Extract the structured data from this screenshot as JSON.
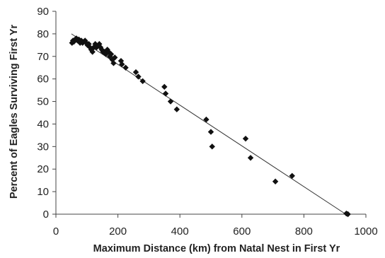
{
  "chart_data": {
    "type": "scatter",
    "title": "",
    "xlabel": "Maximum Distance (km) from Natal Nest in First Yr",
    "ylabel": "Percent of Eagles Surviving First Yr",
    "xlim": [
      0,
      1000
    ],
    "ylim": [
      0,
      90
    ],
    "xticks": [
      0,
      200,
      400,
      600,
      800,
      1000
    ],
    "yticks": [
      0,
      10,
      20,
      30,
      40,
      50,
      60,
      70,
      80,
      90
    ],
    "grid": false,
    "legend": "none",
    "marker": "diamond",
    "colors": {
      "points": "#111111",
      "trendline": "#333333",
      "axis": "#444444"
    },
    "points": [
      {
        "x": 52,
        "y": 76
      },
      {
        "x": 55,
        "y": 77
      },
      {
        "x": 58,
        "y": 76.5
      },
      {
        "x": 62,
        "y": 77.5
      },
      {
        "x": 66,
        "y": 78
      },
      {
        "x": 70,
        "y": 77
      },
      {
        "x": 74,
        "y": 77.5
      },
      {
        "x": 78,
        "y": 76
      },
      {
        "x": 82,
        "y": 77
      },
      {
        "x": 86,
        "y": 76
      },
      {
        "x": 90,
        "y": 76.5
      },
      {
        "x": 94,
        "y": 77
      },
      {
        "x": 98,
        "y": 76
      },
      {
        "x": 102,
        "y": 75
      },
      {
        "x": 106,
        "y": 75.5
      },
      {
        "x": 110,
        "y": 74
      },
      {
        "x": 114,
        "y": 73
      },
      {
        "x": 118,
        "y": 72
      },
      {
        "x": 122,
        "y": 74
      },
      {
        "x": 127,
        "y": 75.5
      },
      {
        "x": 131,
        "y": 74
      },
      {
        "x": 135,
        "y": 74.5
      },
      {
        "x": 140,
        "y": 75.5
      },
      {
        "x": 144,
        "y": 74
      },
      {
        "x": 148,
        "y": 73
      },
      {
        "x": 152,
        "y": 72
      },
      {
        "x": 157,
        "y": 72
      },
      {
        "x": 161,
        "y": 71
      },
      {
        "x": 166,
        "y": 73
      },
      {
        "x": 170,
        "y": 72
      },
      {
        "x": 174,
        "y": 70
      },
      {
        "x": 178,
        "y": 71
      },
      {
        "x": 182,
        "y": 68.5
      },
      {
        "x": 186,
        "y": 67
      },
      {
        "x": 190,
        "y": 69.5
      },
      {
        "x": 210,
        "y": 68
      },
      {
        "x": 213,
        "y": 66.5
      },
      {
        "x": 225,
        "y": 65
      },
      {
        "x": 258,
        "y": 63
      },
      {
        "x": 266,
        "y": 61
      },
      {
        "x": 280,
        "y": 59
      },
      {
        "x": 350,
        "y": 56.5
      },
      {
        "x": 354,
        "y": 53.5
      },
      {
        "x": 370,
        "y": 50
      },
      {
        "x": 390,
        "y": 46.5
      },
      {
        "x": 485,
        "y": 42
      },
      {
        "x": 500,
        "y": 36.5
      },
      {
        "x": 504,
        "y": 30
      },
      {
        "x": 612,
        "y": 33.5
      },
      {
        "x": 628,
        "y": 25
      },
      {
        "x": 708,
        "y": 14.5
      },
      {
        "x": 762,
        "y": 17
      },
      {
        "x": 937,
        "y": 0.3
      },
      {
        "x": 942,
        "y": 0
      }
    ],
    "trendline": {
      "x": [
        50,
        935
      ],
      "y": [
        80,
        0
      ]
    }
  }
}
